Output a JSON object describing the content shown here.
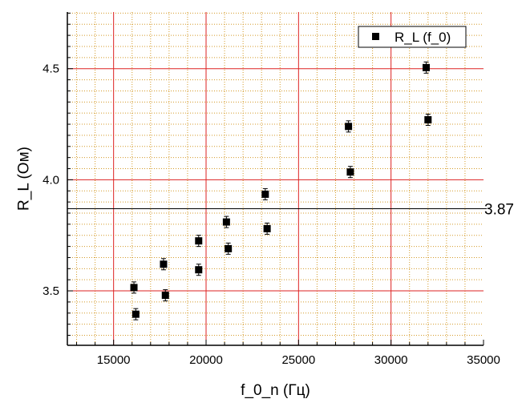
{
  "chart_data": {
    "type": "scatter",
    "xlabel": "f_0_n (Гц)",
    "ylabel": "R_L (Ом)",
    "xlim": [
      12500,
      35000
    ],
    "ylim": [
      3.255,
      4.755
    ],
    "x_ticks": [
      15000,
      20000,
      25000,
      30000,
      35000
    ],
    "x_tick_labels": [
      "15000",
      "20000",
      "25000",
      "30000",
      "35000"
    ],
    "y_ticks": [
      3.5,
      4.0,
      4.5
    ],
    "y_tick_labels": [
      "3.5",
      "4.0",
      "4.5"
    ],
    "grid": true,
    "grid_major_color": "#dd2222",
    "grid_minor_color": "#d49a28",
    "legend_position": "top-right",
    "series": [
      {
        "name": "R_L (f_0)",
        "marker": "square",
        "color": "#000000",
        "points": [
          {
            "x": 16100,
            "y": 3.515
          },
          {
            "x": 16200,
            "y": 3.395
          },
          {
            "x": 17700,
            "y": 3.62
          },
          {
            "x": 17800,
            "y": 3.48
          },
          {
            "x": 19600,
            "y": 3.725
          },
          {
            "x": 19600,
            "y": 3.595
          },
          {
            "x": 21100,
            "y": 3.81
          },
          {
            "x": 21200,
            "y": 3.69
          },
          {
            "x": 23200,
            "y": 3.935
          },
          {
            "x": 23300,
            "y": 3.78
          },
          {
            "x": 27700,
            "y": 4.24
          },
          {
            "x": 27800,
            "y": 4.035
          },
          {
            "x": 31900,
            "y": 4.505
          },
          {
            "x": 32000,
            "y": 4.27
          }
        ]
      }
    ],
    "reference_line": {
      "y": 3.87,
      "label": "3.87"
    }
  }
}
